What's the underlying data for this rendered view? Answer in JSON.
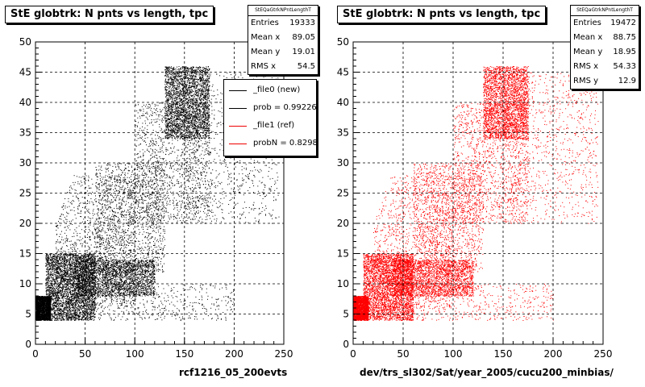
{
  "chart_data": [
    {
      "type": "scatter",
      "title": "StE globtrk: N pnts vs length, tpc",
      "xlabel": "rcf1216_05_200evts",
      "ylabel": "",
      "xlim": [
        0,
        250
      ],
      "ylim": [
        0,
        50
      ],
      "xticks": [
        0,
        50,
        100,
        150,
        200,
        250
      ],
      "yticks": [
        0,
        5,
        10,
        15,
        20,
        25,
        30,
        35,
        40,
        45,
        50
      ],
      "grid": true,
      "color": "#000000",
      "stats": {
        "name": "StEQaGtrkNPntLengthT",
        "rows": [
          {
            "label": "Entries",
            "value": "19333"
          },
          {
            "label": "Mean x",
            "value": "89.05"
          },
          {
            "label": "Mean y",
            "value": "19.01"
          },
          {
            "label": "RMS x",
            "value": "54.5"
          }
        ]
      },
      "legend": {
        "placement": "top-right",
        "entries": [
          {
            "label": "_file0 (new)",
            "color": "#000000"
          },
          {
            "label": "prob = 0.992260",
            "color": "#000000"
          },
          {
            "label": "_file1 (ref)",
            "color": "#ff0000"
          },
          {
            "label": "probN = 0.829876",
            "color": "#ff0000"
          }
        ]
      },
      "density_regions": [
        {
          "x": [
            0,
            15
          ],
          "y": [
            4,
            8
          ],
          "weight": 5
        },
        {
          "x": [
            10,
            60
          ],
          "y": [
            4,
            15
          ],
          "weight": 8
        },
        {
          "x": [
            40,
            120
          ],
          "y": [
            8,
            14
          ],
          "weight": 5
        },
        {
          "x": [
            60,
            130
          ],
          "y": [
            12,
            30
          ],
          "weight": 3
        },
        {
          "x": [
            100,
            175
          ],
          "y": [
            20,
            40
          ],
          "weight": 3
        },
        {
          "x": [
            130,
            175
          ],
          "y": [
            34,
            46
          ],
          "weight": 6
        },
        {
          "x": [
            20,
            100
          ],
          "y": [
            6,
            28
          ],
          "weight": 3
        },
        {
          "x": [
            150,
            245
          ],
          "y": [
            20,
            45
          ],
          "weight": 2
        },
        {
          "x": [
            50,
            200
          ],
          "y": [
            4,
            10
          ],
          "weight": 1
        }
      ]
    },
    {
      "type": "scatter",
      "title": "StE globtrk: N pnts vs length, tpc",
      "xlabel": "dev/trs_sl302/Sat/year_2005/cucu200_minbias/",
      "ylabel": "",
      "xlim": [
        0,
        250
      ],
      "ylim": [
        0,
        50
      ],
      "xticks": [
        0,
        50,
        100,
        150,
        200,
        250
      ],
      "yticks": [
        0,
        5,
        10,
        15,
        20,
        25,
        30,
        35,
        40,
        45,
        50
      ],
      "grid": true,
      "color": "#ff0000",
      "stats": {
        "name": "StEQaGtrkNPntLengthT",
        "rows": [
          {
            "label": "Entries",
            "value": "19472"
          },
          {
            "label": "Mean x",
            "value": "88.75"
          },
          {
            "label": "Mean y",
            "value": "18.95"
          },
          {
            "label": "RMS x",
            "value": "54.33"
          },
          {
            "label": "RMS y",
            "value": "12.9"
          }
        ]
      },
      "density_regions": [
        {
          "x": [
            0,
            15
          ],
          "y": [
            4,
            8
          ],
          "weight": 5
        },
        {
          "x": [
            10,
            60
          ],
          "y": [
            4,
            15
          ],
          "weight": 8
        },
        {
          "x": [
            40,
            120
          ],
          "y": [
            8,
            14
          ],
          "weight": 5
        },
        {
          "x": [
            60,
            130
          ],
          "y": [
            12,
            30
          ],
          "weight": 3
        },
        {
          "x": [
            100,
            175
          ],
          "y": [
            20,
            40
          ],
          "weight": 3
        },
        {
          "x": [
            130,
            175
          ],
          "y": [
            34,
            46
          ],
          "weight": 6
        },
        {
          "x": [
            20,
            100
          ],
          "y": [
            6,
            28
          ],
          "weight": 3
        },
        {
          "x": [
            150,
            245
          ],
          "y": [
            20,
            45
          ],
          "weight": 2
        },
        {
          "x": [
            50,
            200
          ],
          "y": [
            4,
            10
          ],
          "weight": 1
        }
      ]
    }
  ]
}
